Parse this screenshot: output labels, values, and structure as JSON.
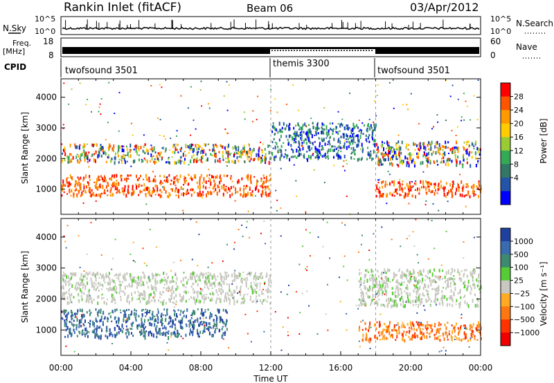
{
  "header": {
    "title": "Rankin Inlet (fitACF)",
    "beam": "Beam 06",
    "date": "03/Apr/2012"
  },
  "noise_panel": {
    "left_label": "N.Sky",
    "right_label": "N.Search",
    "left_ticks": [
      "10^5",
      "10^0"
    ],
    "right_ticks": [
      "10^5",
      "10^0"
    ]
  },
  "freq_panel": {
    "left_label_1": "Freq.",
    "left_label_2": "[MHz]",
    "right_label": "Nave",
    "left_ticks": [
      "18",
      "8"
    ],
    "right_ticks": [
      "60",
      "0"
    ]
  },
  "cpid": {
    "label": "CPID",
    "segments": [
      {
        "name": "twofsound 3501",
        "start_h": 0
      },
      {
        "name": "themis 3300",
        "start_h": 12
      },
      {
        "name": "twofsound 3501",
        "start_h": 18
      }
    ]
  },
  "axes": {
    "ylabel": "Slant Range [km]",
    "xlabel": "Time UT",
    "yticks": [
      "4000",
      "3000",
      "2000",
      "1000"
    ],
    "xticks": [
      "00:00",
      "04:00",
      "08:00",
      "12:00",
      "16:00",
      "20:00",
      "00:00"
    ]
  },
  "power_colorbar": {
    "label": "Power [dB]",
    "ticks": [
      "28",
      "24",
      "20",
      "16",
      "12",
      "8",
      "4"
    ],
    "colors": [
      "#ff0000",
      "#ff5500",
      "#ff9900",
      "#ffcc00",
      "#99cc33",
      "#33aa55",
      "#337766",
      "#2255aa",
      "#0000ff"
    ]
  },
  "velocity_colorbar": {
    "label": "Velocity [m s⁻¹]",
    "ticks": [
      "1000",
      "500",
      "100",
      "25",
      "−25",
      "−100",
      "−500",
      "−1000"
    ],
    "colors": [
      "#2040a0",
      "#3a6bb0",
      "#3d8a70",
      "#55cc33",
      "#c8c8c0",
      "#ffaa22",
      "#ff7711",
      "#ff3300",
      "#ee0000"
    ]
  },
  "chart_data": {
    "type": "heatmap",
    "x_range_hours": [
      0,
      24
    ],
    "y_range_km": [
      180,
      4600
    ],
    "power_regions": [
      {
        "t0": 0.0,
        "t1": 12.0,
        "r0": 1900,
        "r1": 2500,
        "level": "mixed"
      },
      {
        "t0": 0.0,
        "t1": 12.0,
        "r0": 800,
        "r1": 1500,
        "level": "high"
      },
      {
        "t0": 12.0,
        "t1": 18.0,
        "r0": 2000,
        "r1": 3200,
        "level": "low"
      },
      {
        "t0": 18.0,
        "t1": 24.0,
        "r0": 800,
        "r1": 1300,
        "level": "high"
      },
      {
        "t0": 18.0,
        "t1": 24.0,
        "r0": 1800,
        "r1": 2600,
        "level": "mixed"
      }
    ],
    "velocity_regions": [
      {
        "t0": 0.0,
        "t1": 9.5,
        "r0": 800,
        "r1": 1700,
        "vel": "positive"
      },
      {
        "t0": 0.0,
        "t1": 12.0,
        "r0": 1900,
        "r1": 2900,
        "vel": "near-zero"
      },
      {
        "t0": 17.0,
        "t1": 24.0,
        "r0": 700,
        "r1": 1300,
        "vel": "negative"
      },
      {
        "t0": 17.0,
        "t1": 24.0,
        "r0": 1800,
        "r1": 3000,
        "vel": "near-zero"
      }
    ]
  }
}
